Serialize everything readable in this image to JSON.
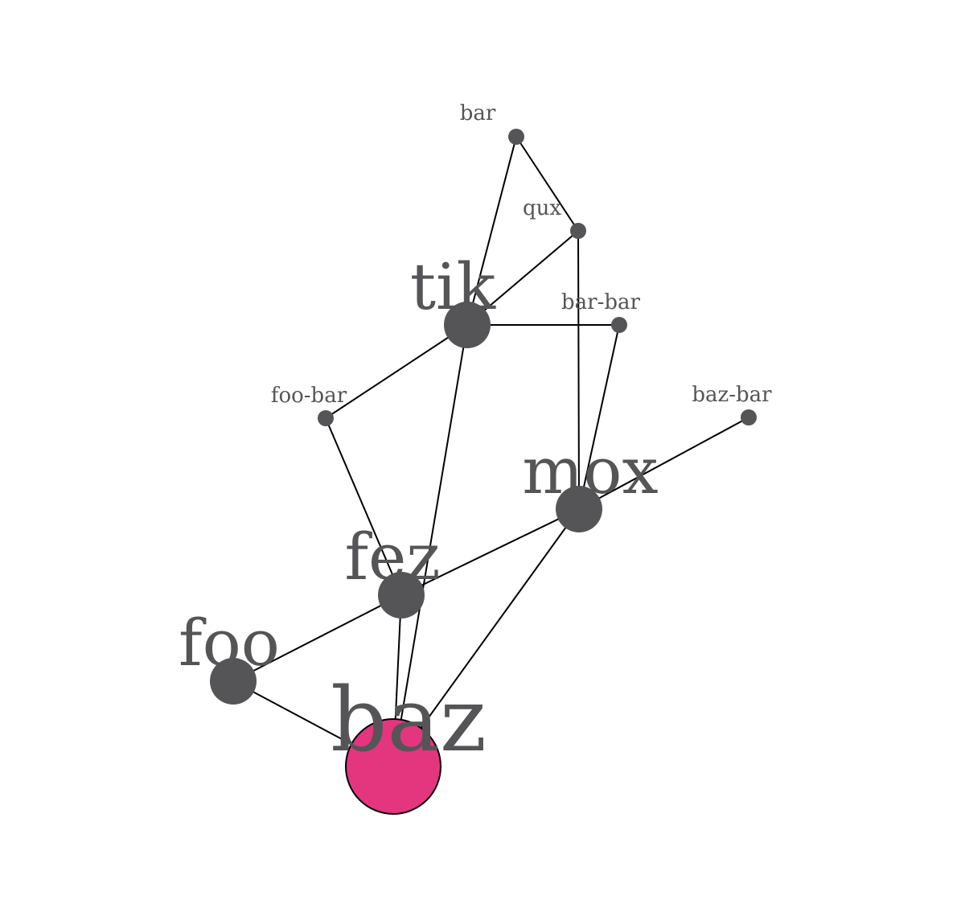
{
  "graph": {
    "node_color": "#555558",
    "highlight_color": "#e4357f",
    "edge_color": "#000000",
    "nodes": [
      {
        "id": "bar",
        "label": "bar",
        "size": "small"
      },
      {
        "id": "qux",
        "label": "qux",
        "size": "small"
      },
      {
        "id": "tik",
        "label": "tik",
        "size": "large"
      },
      {
        "id": "bar-bar",
        "label": "bar-bar",
        "size": "small"
      },
      {
        "id": "foo-bar",
        "label": "foo-bar",
        "size": "small"
      },
      {
        "id": "baz-bar",
        "label": "baz-bar",
        "size": "small"
      },
      {
        "id": "mox",
        "label": "mox",
        "size": "large"
      },
      {
        "id": "fez",
        "label": "fez",
        "size": "large"
      },
      {
        "id": "foo",
        "label": "foo",
        "size": "large"
      },
      {
        "id": "baz",
        "label": "baz",
        "size": "highlight"
      }
    ],
    "edges": [
      [
        "bar",
        "tik"
      ],
      [
        "bar",
        "qux"
      ],
      [
        "qux",
        "tik"
      ],
      [
        "qux",
        "mox"
      ],
      [
        "tik",
        "bar-bar"
      ],
      [
        "tik",
        "foo-bar"
      ],
      [
        "tik",
        "baz"
      ],
      [
        "bar-bar",
        "mox"
      ],
      [
        "foo-bar",
        "fez"
      ],
      [
        "baz-bar",
        "mox"
      ],
      [
        "mox",
        "fez"
      ],
      [
        "mox",
        "baz"
      ],
      [
        "fez",
        "foo"
      ],
      [
        "fez",
        "baz"
      ],
      [
        "foo",
        "baz"
      ]
    ]
  }
}
